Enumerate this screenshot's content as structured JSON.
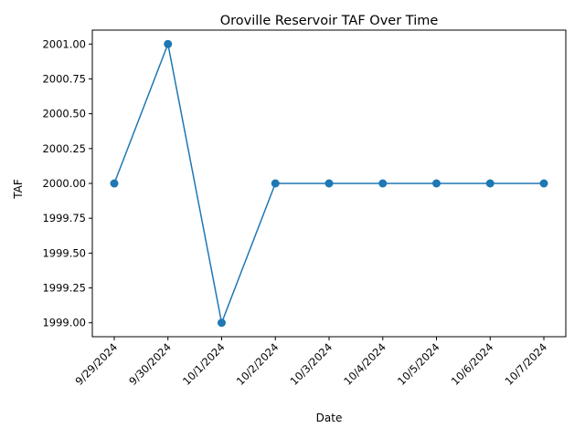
{
  "chart_data": {
    "type": "line",
    "title": "Oroville Reservoir TAF Over Time",
    "xlabel": "Date",
    "ylabel": "TAF",
    "categories": [
      "9/29/2024",
      "9/30/2024",
      "10/1/2024",
      "10/2/2024",
      "10/3/2024",
      "10/4/2024",
      "10/5/2024",
      "10/6/2024",
      "10/7/2024"
    ],
    "series": [
      {
        "values": [
          2000,
          2001,
          1999,
          2000,
          2000,
          2000,
          2000,
          2000,
          2000
        ],
        "color": "#1f77b4",
        "marker": "circle"
      }
    ],
    "yticks": [
      "1999.00",
      "1999.25",
      "1999.50",
      "1999.75",
      "2000.00",
      "2000.25",
      "2000.50",
      "2000.75",
      "2001.00"
    ],
    "ylim": [
      1998.9,
      2001.1
    ],
    "grid": false,
    "legend": "none"
  }
}
